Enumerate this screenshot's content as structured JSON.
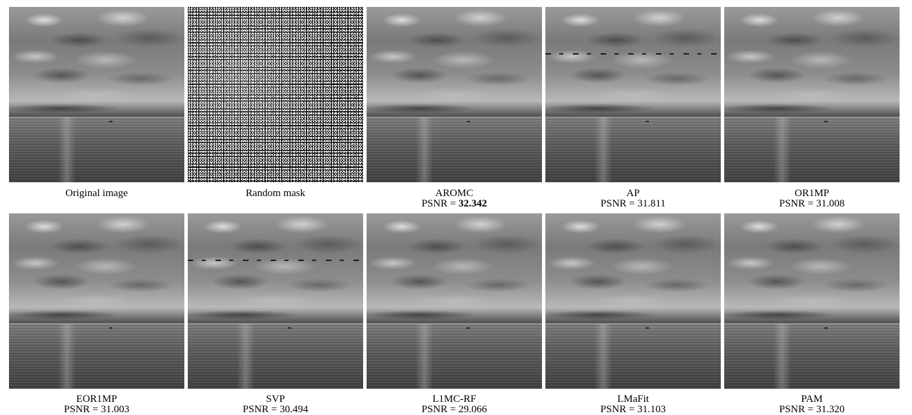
{
  "row1": [
    {
      "title": "Original image",
      "psnr_prefix": "",
      "psnr": "",
      "bold": false,
      "type": "photo"
    },
    {
      "title": "Random mask",
      "psnr_prefix": "",
      "psnr": "",
      "bold": false,
      "type": "mask"
    },
    {
      "title": "AROMC",
      "psnr_prefix": "PSNR = ",
      "psnr": "32.342",
      "bold": true,
      "type": "photo"
    },
    {
      "title": "AP",
      "psnr_prefix": "PSNR = ",
      "psnr": "31.811",
      "bold": false,
      "type": "photo-streak"
    },
    {
      "title": "OR1MP",
      "psnr_prefix": "PSNR = ",
      "psnr": "31.008",
      "bold": false,
      "type": "photo"
    }
  ],
  "row2": [
    {
      "title": "EOR1MP",
      "psnr_prefix": "PSNR = ",
      "psnr": "31.003",
      "bold": false,
      "type": "photo"
    },
    {
      "title": "SVP",
      "psnr_prefix": "PSNR = ",
      "psnr": "30.494",
      "bold": false,
      "type": "photo-streak"
    },
    {
      "title": "L1MC-RF",
      "psnr_prefix": "PSNR = ",
      "psnr": "29.066",
      "bold": false,
      "type": "photo"
    },
    {
      "title": "LMaFit",
      "psnr_prefix": "PSNR = ",
      "psnr": "31.103",
      "bold": false,
      "type": "photo"
    },
    {
      "title": "PAM",
      "psnr_prefix": "PSNR = ",
      "psnr": "31.320",
      "bold": false,
      "type": "photo"
    }
  ]
}
